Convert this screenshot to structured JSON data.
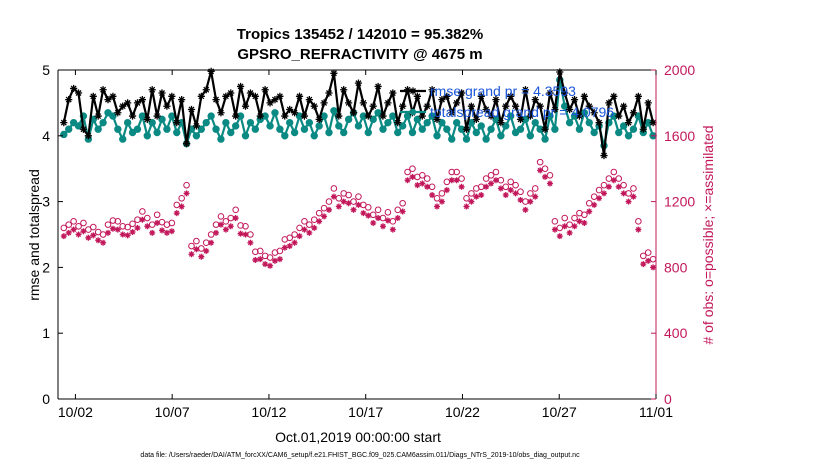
{
  "chart_data": {
    "type": "line",
    "title": "Tropics 135452 / 142010 = 95.382%",
    "subtitle": "GPSRO_REFRACTIVITY @ 4675 m",
    "xlabel": "Oct.01,2019 00:00:00 start",
    "ylabel": "rmse and totalspread",
    "y2label": "# of obs: o=possible; ×=assimilated",
    "x_ticks": [
      "10/02",
      "10/07",
      "10/12",
      "10/17",
      "10/22",
      "10/27",
      "11/01"
    ],
    "x_tick_days": [
      1,
      6,
      11,
      16,
      21,
      26,
      31
    ],
    "xlim": [
      0.1,
      31
    ],
    "ylim": [
      0,
      5
    ],
    "y_ticks": [
      "0",
      "1",
      "2",
      "3",
      "4",
      "5"
    ],
    "y2lim": [
      0,
      2000
    ],
    "y2_ticks": [
      "0",
      "400",
      "800",
      "1200",
      "1600",
      "2000"
    ],
    "legend": {
      "position": "top-right",
      "entries": [
        "rmse grand pr = 4.3593",
        "totalspread grand pr = 4.0796"
      ]
    },
    "footnote": "data file: /Users/raeder/DAI/ATM_forcXX/CAM6_setup/f.e21.FHIST_BGC.f09_025.CAM6assim.011/Diags_NTrS_2019-10/obs_diag_output.nc",
    "colors": {
      "rmse": "#000000",
      "spread": "#0b8a84",
      "obs": "#c2185b"
    },
    "series": [
      {
        "name": "rmse",
        "marker": "*",
        "values": [
          4.2,
          4.55,
          4.72,
          4.65,
          4.1,
          4.0,
          4.6,
          4.3,
          4.7,
          4.55,
          4.6,
          4.35,
          4.45,
          4.5,
          4.3,
          4.5,
          4.55,
          4.25,
          4.7,
          4.3,
          4.65,
          4.45,
          4.6,
          4.2,
          4.55,
          3.88,
          4.4,
          4.15,
          4.6,
          4.7,
          4.98,
          4.55,
          4.35,
          4.6,
          4.65,
          4.3,
          4.75,
          4.45,
          4.65,
          4.6,
          4.3,
          4.7,
          4.5,
          4.55,
          4.6,
          4.3,
          4.4,
          4.35,
          4.6,
          4.3,
          4.55,
          4.45,
          4.25,
          4.5,
          4.65,
          4.95,
          4.3,
          4.7,
          4.5,
          4.35,
          4.8,
          4.5,
          4.3,
          4.45,
          4.75,
          4.3,
          4.5,
          4.65,
          4.2,
          4.45,
          4.7,
          4.35,
          4.6,
          4.3,
          4.45,
          4.7,
          4.25,
          4.55,
          4.6,
          4.35,
          4.5,
          4.65,
          4.1,
          4.45,
          4.25,
          4.6,
          4.4,
          4.3,
          4.55,
          4.2,
          4.45,
          4.6,
          4.45,
          4.25,
          4.7,
          4.3,
          4.55,
          4.45,
          4.1,
          4.65,
          4.4,
          4.97,
          4.65,
          4.4,
          4.55,
          4.3,
          4.6,
          4.45,
          4.35,
          4.2,
          3.7,
          4.5,
          4.6,
          4.3,
          4.45,
          4.2,
          4.35,
          4.6,
          4.1,
          4.5,
          4.2
        ]
      },
      {
        "name": "totalspread",
        "marker": "o",
        "values": [
          4.02,
          4.1,
          4.2,
          4.15,
          4.3,
          3.95,
          4.25,
          4.1,
          4.2,
          4.35,
          4.3,
          4.1,
          3.95,
          4.2,
          4.05,
          4.1,
          4.3,
          4.0,
          4.2,
          4.05,
          4.25,
          4.1,
          4.3,
          4.05,
          4.2,
          3.88,
          4.1,
          4.0,
          4.1,
          4.2,
          4.3,
          4.1,
          3.95,
          4.2,
          4.05,
          4.15,
          4.3,
          4.0,
          4.2,
          4.1,
          4.25,
          4.3,
          4.15,
          4.35,
          4.1,
          4.0,
          4.2,
          4.05,
          4.3,
          4.1,
          4.2,
          4.0,
          4.15,
          4.3,
          4.05,
          4.38,
          4.15,
          4.05,
          4.25,
          4.35,
          4.15,
          4.3,
          4.05,
          4.25,
          4.35,
          4.1,
          4.2,
          4.3,
          4.05,
          4.15,
          4.3,
          4.05,
          4.25,
          4.1,
          4.2,
          4.3,
          4.0,
          4.2,
          4.1,
          3.95,
          4.2,
          4.1,
          3.95,
          4.2,
          4.05,
          4.15,
          3.95,
          4.1,
          4.25,
          4.0,
          4.15,
          4.3,
          4.05,
          4.1,
          4.25,
          4.0,
          4.2,
          4.1,
          3.95,
          4.3,
          4.1,
          4.85,
          4.45,
          4.2,
          4.3,
          4.1,
          4.35,
          4.2,
          4.05,
          4.15,
          3.85,
          4.2,
          4.3,
          4.05,
          4.15,
          4.0,
          4.1,
          4.3,
          4.05,
          4.2,
          4.0
        ]
      },
      {
        "name": "obs possible",
        "marker": "o",
        "axis": "right",
        "values": [
          1040,
          1060,
          1080,
          1050,
          1070,
          1030,
          1045,
          1015,
          1000,
          1060,
          1085,
          1080,
          1050,
          1045,
          1065,
          1090,
          1140,
          1100,
          1060,
          1120,
          1075,
          1060,
          1070,
          1180,
          1220,
          1300,
          930,
          960,
          915,
          950,
          1000,
          1060,
          1110,
          1080,
          1100,
          1150,
          1055,
          1050,
          1000,
          895,
          900,
          870,
          860,
          890,
          900,
          970,
          980,
          1000,
          1040,
          1080,
          1060,
          1090,
          1130,
          1160,
          1200,
          1280,
          1220,
          1250,
          1240,
          1200,
          1230,
          1180,
          1165,
          1120,
          1150,
          1100,
          1135,
          1080,
          1150,
          1190,
          1380,
          1400,
          1350,
          1360,
          1340,
          1290,
          1220,
          1250,
          1320,
          1380,
          1380,
          1340,
          1220,
          1250,
          1280,
          1290,
          1340,
          1360,
          1380,
          1330,
          1290,
          1320,
          1300,
          1260,
          1200,
          1250,
          1280,
          1440,
          1400,
          1360,
          1080,
          1040,
          1100,
          1060,
          1100,
          1130,
          1120,
          1190,
          1230,
          1270,
          1300,
          1340,
          1380,
          1340,
          1300,
          1250,
          1280,
          1080,
          870,
          890,
          850
        ]
      },
      {
        "name": "obs assimilated",
        "marker": "*",
        "axis": "right",
        "values": [
          990,
          1010,
          1030,
          1000,
          1020,
          980,
          995,
          965,
          950,
          1010,
          1035,
          1030,
          1000,
          995,
          1015,
          1040,
          1090,
          1050,
          1010,
          1070,
          1025,
          1010,
          1020,
          1130,
          1170,
          1250,
          880,
          910,
          865,
          900,
          950,
          1010,
          1060,
          1030,
          1050,
          1100,
          1005,
          1000,
          950,
          845,
          850,
          820,
          810,
          840,
          850,
          920,
          930,
          950,
          990,
          1030,
          1010,
          1040,
          1080,
          1110,
          1150,
          1230,
          1170,
          1200,
          1190,
          1150,
          1180,
          1130,
          1115,
          1070,
          1100,
          1050,
          1085,
          1030,
          1100,
          1140,
          1330,
          1350,
          1300,
          1310,
          1290,
          1240,
          1170,
          1200,
          1270,
          1330,
          1330,
          1290,
          1170,
          1200,
          1230,
          1240,
          1290,
          1310,
          1330,
          1280,
          1240,
          1270,
          1250,
          1210,
          1150,
          1200,
          1230,
          1390,
          1350,
          1310,
          1030,
          990,
          1050,
          1010,
          1050,
          1080,
          1070,
          1140,
          1180,
          1220,
          1250,
          1290,
          1330,
          1290,
          1250,
          1200,
          1230,
          1030,
          820,
          840,
          800
        ]
      }
    ]
  }
}
